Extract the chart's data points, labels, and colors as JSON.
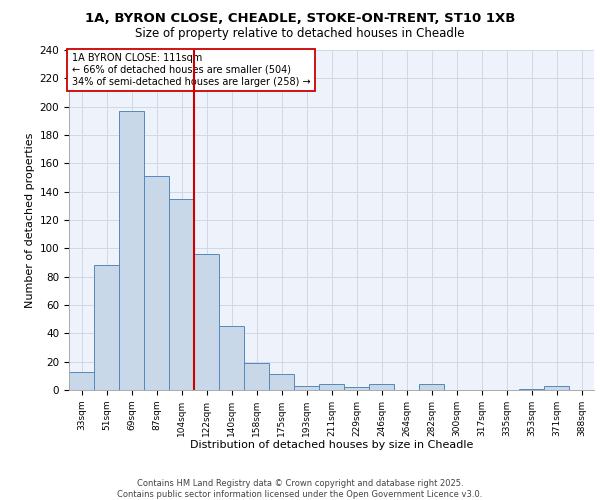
{
  "title_line1": "1A, BYRON CLOSE, CHEADLE, STOKE-ON-TRENT, ST10 1XB",
  "title_line2": "Size of property relative to detached houses in Cheadle",
  "xlabel": "Distribution of detached houses by size in Cheadle",
  "ylabel": "Number of detached properties",
  "categories": [
    "33sqm",
    "51sqm",
    "69sqm",
    "87sqm",
    "104sqm",
    "122sqm",
    "140sqm",
    "158sqm",
    "175sqm",
    "193sqm",
    "211sqm",
    "229sqm",
    "246sqm",
    "264sqm",
    "282sqm",
    "300sqm",
    "317sqm",
    "335sqm",
    "353sqm",
    "371sqm",
    "388sqm"
  ],
  "values": [
    13,
    88,
    197,
    151,
    135,
    96,
    45,
    19,
    11,
    3,
    4,
    2,
    4,
    0,
    4,
    0,
    0,
    0,
    1,
    3,
    0
  ],
  "bar_color": "#c8d8e8",
  "bar_edge_color": "#5588bb",
  "grid_color": "#d0d8e8",
  "background_color": "#eef2fa",
  "annotation_box_text": "1A BYRON CLOSE: 111sqm\n← 66% of detached houses are smaller (504)\n34% of semi-detached houses are larger (258) →",
  "vline_x": 4.5,
  "vline_color": "#cc0000",
  "footnote_line1": "Contains HM Land Registry data © Crown copyright and database right 2025.",
  "footnote_line2": "Contains public sector information licensed under the Open Government Licence v3.0.",
  "ylim": [
    0,
    240
  ],
  "yticks": [
    0,
    20,
    40,
    60,
    80,
    100,
    120,
    140,
    160,
    180,
    200,
    220,
    240
  ]
}
